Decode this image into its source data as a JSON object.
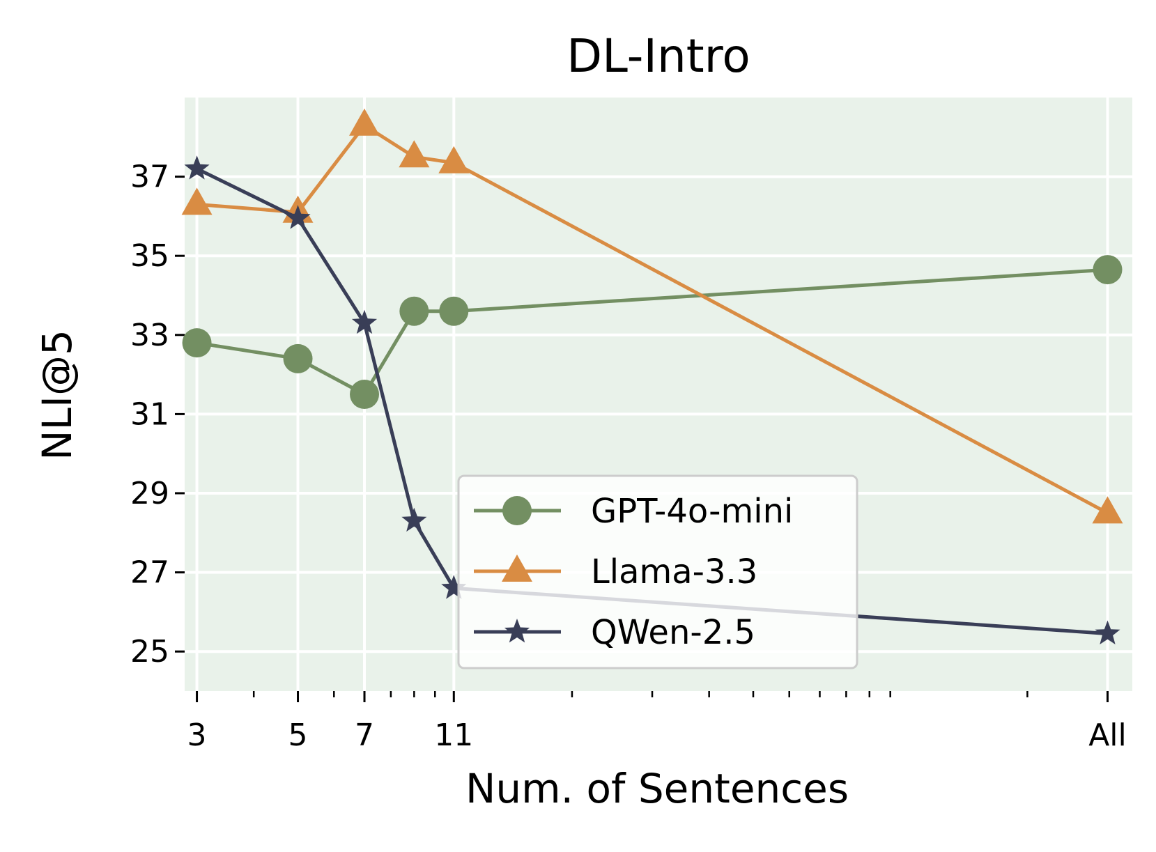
{
  "chart_data": {
    "type": "line",
    "title": "DL-Intro",
    "xlabel": "Num. of Sentences",
    "ylabel": "NLI@5",
    "x_scale": "log",
    "x_ticks": [
      {
        "label": "3",
        "value": 3
      },
      {
        "label": "5",
        "value": 5
      },
      {
        "label": "7",
        "value": 7
      },
      {
        "label": "11",
        "value": 11
      },
      {
        "label": "All",
        "value": 300
      }
    ],
    "x_minor_ticks": [
      4,
      6,
      8,
      9,
      10,
      20,
      30,
      40,
      50,
      60,
      70,
      80,
      90,
      100,
      200
    ],
    "xlim": [
      2.82,
      340
    ],
    "y_ticks": [
      25,
      27,
      29,
      31,
      33,
      35,
      37
    ],
    "ylim": [
      24,
      39
    ],
    "grid": true,
    "legend_position": "lower-center",
    "background_color": "#e9f2ea",
    "series": [
      {
        "name": "GPT-4o-mini",
        "marker": "circle",
        "color": "#738f62",
        "x": [
          3,
          5,
          7,
          9,
          11,
          300
        ],
        "y": [
          32.8,
          32.4,
          31.5,
          33.6,
          33.6,
          34.65
        ]
      },
      {
        "name": "Llama-3.3",
        "marker": "triangle",
        "color": "#d98c43",
        "x": [
          3,
          5,
          7,
          9,
          11,
          300
        ],
        "y": [
          36.3,
          36.1,
          38.3,
          37.5,
          37.35,
          28.5
        ]
      },
      {
        "name": "QWen-2.5",
        "marker": "star",
        "color": "#393e57",
        "x": [
          3,
          5,
          7,
          9,
          11,
          300
        ],
        "y": [
          37.2,
          35.95,
          33.3,
          28.3,
          26.6,
          25.45
        ]
      }
    ]
  }
}
